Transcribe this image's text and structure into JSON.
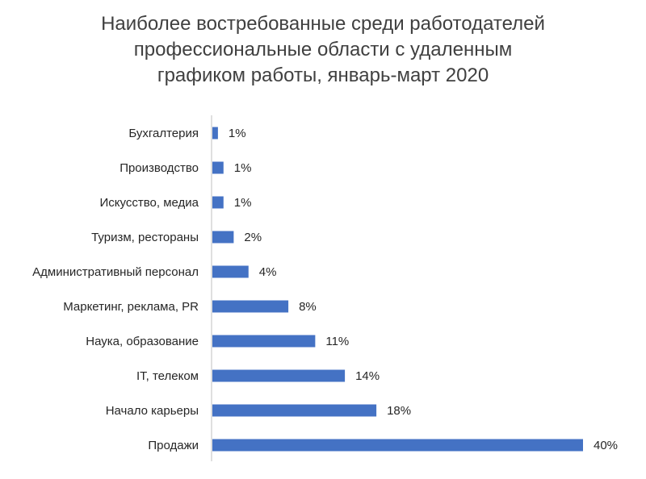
{
  "chart_data": {
    "type": "bar",
    "orientation": "horizontal",
    "title": "Наиболее востребованные среди работодателей\nпрофессиональные области с   удаленным\nграфиком работы, январь-март 2020",
    "categories": [
      "Бухгалтерия",
      "Производство",
      "Искусство, медиа",
      "Туризм, рестораны",
      "Административный персонал",
      "Маркетинг, реклама, PR",
      "Наука, образование",
      "IT, телеком",
      "Начало карьеры",
      "Продажи"
    ],
    "values": [
      0.6,
      1.2,
      1.2,
      2.3,
      3.9,
      8.2,
      11.1,
      14.3,
      17.7,
      40.0
    ],
    "value_labels": [
      "1%",
      "1%",
      "1%",
      "2%",
      "4%",
      "8%",
      "11%",
      "14%",
      "18%",
      "40%"
    ],
    "value_unit": "%",
    "xlim": [
      0,
      40
    ],
    "bar_color": "#4472C4",
    "axis_color": "#BFBFBF",
    "grid": false,
    "legend": "none"
  }
}
